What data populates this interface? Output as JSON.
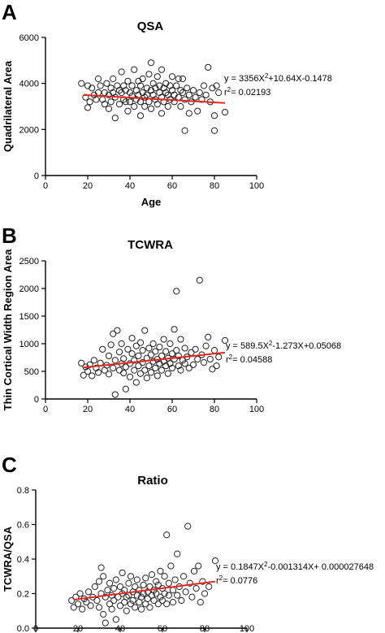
{
  "chart_data": [
    {
      "type": "scatter",
      "panel_label": "A",
      "title": "QSA",
      "xlabel": "Age",
      "ylabel": "Quadrilateral Area",
      "xlim": [
        0,
        100
      ],
      "ylim": [
        0,
        6000
      ],
      "x_ticks": [
        0,
        20,
        40,
        60,
        80,
        100
      ],
      "y_ticks": [
        0,
        2000,
        4000,
        6000
      ],
      "x_tick_labels": [
        "0",
        "20",
        "40",
        "60",
        "80",
        "100"
      ],
      "y_tick_labels": [
        "0",
        "2000",
        "4000",
        "6000"
      ],
      "grid": false,
      "annotation": {
        "equation_parts": [
          "y = 3356X",
          "2",
          "+10.64X-0.1478"
        ],
        "r2_parts": [
          "r",
          "2",
          "= 0.02193"
        ]
      },
      "fit_line": {
        "x": [
          18,
          85
        ],
        "y": [
          3500,
          3150
        ]
      },
      "points": [
        [
          17,
          4000
        ],
        [
          19,
          3400
        ],
        [
          20,
          3900
        ],
        [
          20,
          2950
        ],
        [
          21,
          3200
        ],
        [
          22,
          3800
        ],
        [
          23,
          3500
        ],
        [
          24,
          3300
        ],
        [
          25,
          4200
        ],
        [
          25,
          3600
        ],
        [
          26,
          3900
        ],
        [
          27,
          3300
        ],
        [
          28,
          3600
        ],
        [
          28,
          3100
        ],
        [
          29,
          4000
        ],
        [
          30,
          3500
        ],
        [
          30,
          2900
        ],
        [
          31,
          3800
        ],
        [
          31,
          3200
        ],
        [
          32,
          4200
        ],
        [
          32,
          3600
        ],
        [
          33,
          3400
        ],
        [
          33,
          2500
        ],
        [
          34,
          3900
        ],
        [
          35,
          3700
        ],
        [
          35,
          3100
        ],
        [
          36,
          4500
        ],
        [
          36,
          3600
        ],
        [
          37,
          3300
        ],
        [
          37,
          3900
        ],
        [
          38,
          3200
        ],
        [
          38,
          3700
        ],
        [
          39,
          4100
        ],
        [
          39,
          2800
        ],
        [
          40,
          3600
        ],
        [
          40,
          3200
        ],
        [
          41,
          3900
        ],
        [
          41,
          3450
        ],
        [
          42,
          4600
        ],
        [
          42,
          3000
        ],
        [
          43,
          3700
        ],
        [
          43,
          3300
        ],
        [
          44,
          4100
        ],
        [
          44,
          3500
        ],
        [
          45,
          3200
        ],
        [
          45,
          3900
        ],
        [
          45,
          2600
        ],
        [
          46,
          3600
        ],
        [
          46,
          4200
        ],
        [
          47,
          3400
        ],
        [
          47,
          3000
        ],
        [
          48,
          3800
        ],
        [
          48,
          3500
        ],
        [
          49,
          4400
        ],
        [
          49,
          3200
        ],
        [
          50,
          4900
        ],
        [
          50,
          3700
        ],
        [
          50,
          2900
        ],
        [
          51,
          3500
        ],
        [
          51,
          4000
        ],
        [
          52,
          3300
        ],
        [
          52,
          3800
        ],
        [
          53,
          4300
        ],
        [
          53,
          3100
        ],
        [
          54,
          3600
        ],
        [
          54,
          3900
        ],
        [
          55,
          3400
        ],
        [
          55,
          4600
        ],
        [
          55,
          2700
        ],
        [
          56,
          3800
        ],
        [
          56,
          3200
        ],
        [
          57,
          3600
        ],
        [
          57,
          4000
        ],
        [
          58,
          3500
        ],
        [
          58,
          3000
        ],
        [
          59,
          3900
        ],
        [
          59,
          3300
        ],
        [
          60,
          3700
        ],
        [
          60,
          4300
        ],
        [
          61,
          3200
        ],
        [
          61,
          3500
        ],
        [
          62,
          3900
        ],
        [
          63,
          4200
        ],
        [
          63,
          3400
        ],
        [
          64,
          3000
        ],
        [
          64,
          3700
        ],
        [
          65,
          3600
        ],
        [
          65,
          4200
        ],
        [
          66,
          3300
        ],
        [
          66,
          1950
        ],
        [
          67,
          3800
        ],
        [
          68,
          3500
        ],
        [
          68,
          2700
        ],
        [
          69,
          3200
        ],
        [
          70,
          3700
        ],
        [
          71,
          3400
        ],
        [
          72,
          2800
        ],
        [
          73,
          3600
        ],
        [
          74,
          3300
        ],
        [
          75,
          3900
        ],
        [
          76,
          3500
        ],
        [
          77,
          4700
        ],
        [
          78,
          3200
        ],
        [
          79,
          3800
        ],
        [
          80,
          2600
        ],
        [
          80,
          1950
        ],
        [
          81,
          3900
        ],
        [
          82,
          3600
        ],
        [
          85,
          2750
        ]
      ]
    },
    {
      "type": "scatter",
      "panel_label": "B",
      "title": "TCWRA",
      "xlabel": "",
      "ylabel": "Thin Cortical Width Region Area",
      "xlim": [
        0,
        100
      ],
      "ylim": [
        0,
        2500
      ],
      "x_ticks": [
        0,
        20,
        40,
        60,
        80,
        100
      ],
      "y_ticks": [
        0,
        500,
        1000,
        1500,
        2000,
        2500
      ],
      "x_tick_labels": [
        "0",
        "20",
        "40",
        "60",
        "80",
        "100"
      ],
      "y_tick_labels": [
        "0",
        "500",
        "1000",
        "1500",
        "2000",
        "2500"
      ],
      "grid": false,
      "annotation": {
        "equation_parts": [
          "y = 589.5X",
          "2",
          "-1.273X+0.05068"
        ],
        "r2_parts": [
          "r",
          "2",
          "= 0.04588"
        ]
      },
      "fit_line": {
        "x": [
          18,
          85
        ],
        "y": [
          570,
          840
        ]
      },
      "points": [
        [
          17,
          650
        ],
        [
          18,
          430
        ],
        [
          19,
          580
        ],
        [
          20,
          500
        ],
        [
          21,
          620
        ],
        [
          22,
          420
        ],
        [
          23,
          700
        ],
        [
          24,
          560
        ],
        [
          25,
          480
        ],
        [
          26,
          650
        ],
        [
          27,
          900
        ],
        [
          28,
          520
        ],
        [
          29,
          610
        ],
        [
          30,
          450
        ],
        [
          30,
          780
        ],
        [
          31,
          980
        ],
        [
          32,
          560
        ],
        [
          32,
          1180
        ],
        [
          33,
          700
        ],
        [
          33,
          80
        ],
        [
          34,
          1240
        ],
        [
          35,
          520
        ],
        [
          35,
          850
        ],
        [
          36,
          640
        ],
        [
          36,
          1000
        ],
        [
          37,
          470
        ],
        [
          37,
          730
        ],
        [
          38,
          580
        ],
        [
          38,
          180
        ],
        [
          39,
          900
        ],
        [
          40,
          640
        ],
        [
          40,
          400
        ],
        [
          41,
          820
        ],
        [
          41,
          1100
        ],
        [
          42,
          520
        ],
        [
          42,
          700
        ],
        [
          43,
          960
        ],
        [
          43,
          300
        ],
        [
          44,
          600
        ],
        [
          44,
          780
        ],
        [
          45,
          460
        ],
        [
          45,
          1020
        ],
        [
          46,
          660
        ],
        [
          46,
          880
        ],
        [
          47,
          520
        ],
        [
          47,
          1240
        ],
        [
          48,
          740
        ],
        [
          48,
          380
        ],
        [
          49,
          600
        ],
        [
          49,
          920
        ],
        [
          50,
          800
        ],
        [
          50,
          480
        ],
        [
          51,
          680
        ],
        [
          51,
          1000
        ],
        [
          52,
          560
        ],
        [
          52,
          860
        ],
        [
          53,
          720
        ],
        [
          53,
          420
        ],
        [
          54,
          940
        ],
        [
          54,
          640
        ],
        [
          55,
          780
        ],
        [
          55,
          520
        ],
        [
          56,
          1080
        ],
        [
          56,
          680
        ],
        [
          57,
          600
        ],
        [
          57,
          860
        ],
        [
          58,
          740
        ],
        [
          58,
          460
        ],
        [
          59,
          1000
        ],
        [
          59,
          640
        ],
        [
          60,
          820
        ],
        [
          60,
          560
        ],
        [
          61,
          1260
        ],
        [
          61,
          720
        ],
        [
          62,
          1950
        ],
        [
          62,
          880
        ],
        [
          63,
          600
        ],
        [
          63,
          780
        ],
        [
          64,
          1080
        ],
        [
          64,
          520
        ],
        [
          65,
          700
        ],
        [
          66,
          920
        ],
        [
          66,
          640
        ],
        [
          67,
          760
        ],
        [
          68,
          560
        ],
        [
          69,
          840
        ],
        [
          70,
          620
        ],
        [
          71,
          900
        ],
        [
          72,
          720
        ],
        [
          73,
          2150
        ],
        [
          74,
          800
        ],
        [
          75,
          660
        ],
        [
          76,
          960
        ],
        [
          77,
          1120
        ],
        [
          78,
          720
        ],
        [
          79,
          540
        ],
        [
          80,
          880
        ],
        [
          81,
          600
        ],
        [
          82,
          760
        ],
        [
          85,
          1060
        ]
      ]
    },
    {
      "type": "scatter",
      "panel_label": "C",
      "title": "Ratio",
      "xlabel": "",
      "ylabel": "TCWRA/QSA",
      "xlim": [
        0,
        100
      ],
      "ylim": [
        0,
        0.8
      ],
      "x_ticks": [
        0,
        20,
        40,
        60,
        80,
        100
      ],
      "y_ticks": [
        0,
        0.2,
        0.4,
        0.6,
        0.8
      ],
      "x_tick_labels": [
        "0",
        "20",
        "40",
        "60",
        "80",
        "100"
      ],
      "y_tick_labels": [
        "0.0",
        "0.2",
        "0.4",
        "0.6",
        "0.8"
      ],
      "grid": false,
      "annotation": {
        "equation_parts": [
          "y = 0.1847X",
          "2",
          "-0.001314X+ 0.000027648"
        ],
        "r2_parts": [
          "r",
          "2",
          "= 0.0776"
        ]
      },
      "fit_line": {
        "x": [
          18,
          85
        ],
        "y": [
          0.165,
          0.27
        ]
      },
      "points": [
        [
          17,
          0.16
        ],
        [
          18,
          0.12
        ],
        [
          19,
          0.18
        ],
        [
          20,
          0.14
        ],
        [
          21,
          0.2
        ],
        [
          22,
          0.11
        ],
        [
          23,
          0.17
        ],
        [
          24,
          0.15
        ],
        [
          25,
          0.21
        ],
        [
          26,
          0.13
        ],
        [
          27,
          0.18
        ],
        [
          28,
          0.24
        ],
        [
          29,
          0.16
        ],
        [
          30,
          0.27
        ],
        [
          30,
          0.12
        ],
        [
          31,
          0.35
        ],
        [
          31,
          0.2
        ],
        [
          32,
          0.3
        ],
        [
          32,
          0.08
        ],
        [
          33,
          0.18
        ],
        [
          33,
          0.03
        ],
        [
          34,
          0.22
        ],
        [
          35,
          0.14
        ],
        [
          35,
          0.26
        ],
        [
          36,
          0.19
        ],
        [
          36,
          0.11
        ],
        [
          37,
          0.23
        ],
        [
          37,
          0.16
        ],
        [
          38,
          0.28
        ],
        [
          38,
          0.05
        ],
        [
          39,
          0.18
        ],
        [
          40,
          0.13
        ],
        [
          40,
          0.24
        ],
        [
          41,
          0.2
        ],
        [
          41,
          0.32
        ],
        [
          42,
          0.15
        ],
        [
          42,
          0.22
        ],
        [
          43,
          0.18
        ],
        [
          43,
          0.1
        ],
        [
          44,
          0.26
        ],
        [
          44,
          0.19
        ],
        [
          45,
          0.14
        ],
        [
          45,
          0.3
        ],
        [
          46,
          0.21
        ],
        [
          46,
          0.16
        ],
        [
          47,
          0.24
        ],
        [
          47,
          0.12
        ],
        [
          48,
          0.19
        ],
        [
          48,
          0.28
        ],
        [
          49,
          0.15
        ],
        [
          49,
          0.22
        ],
        [
          50,
          0.18
        ],
        [
          50,
          0.11
        ],
        [
          51,
          0.25
        ],
        [
          51,
          0.2
        ],
        [
          52,
          0.14
        ],
        [
          52,
          0.29
        ],
        [
          53,
          0.21
        ],
        [
          53,
          0.17
        ],
        [
          54,
          0.24
        ],
        [
          54,
          0.12
        ],
        [
          55,
          0.19
        ],
        [
          55,
          0.31
        ],
        [
          56,
          0.22
        ],
        [
          56,
          0.16
        ],
        [
          57,
          0.27
        ],
        [
          57,
          0.2
        ],
        [
          58,
          0.14
        ],
        [
          58,
          0.25
        ],
        [
          59,
          0.18
        ],
        [
          59,
          0.33
        ],
        [
          60,
          0.23
        ],
        [
          60,
          0.16
        ],
        [
          61,
          0.3
        ],
        [
          61,
          0.2
        ],
        [
          62,
          0.54
        ],
        [
          62,
          0.14
        ],
        [
          63,
          0.26
        ],
        [
          63,
          0.19
        ],
        [
          64,
          0.36
        ],
        [
          65,
          0.22
        ],
        [
          65,
          0.15
        ],
        [
          66,
          0.28
        ],
        [
          67,
          0.43
        ],
        [
          67,
          0.19
        ],
        [
          68,
          0.24
        ],
        [
          69,
          0.16
        ],
        [
          70,
          0.3
        ],
        [
          71,
          0.21
        ],
        [
          72,
          0.59
        ],
        [
          73,
          0.26
        ],
        [
          74,
          0.18
        ],
        [
          75,
          0.33
        ],
        [
          76,
          0.23
        ],
        [
          77,
          0.36
        ],
        [
          78,
          0.15
        ],
        [
          79,
          0.27
        ],
        [
          80,
          0.2
        ],
        [
          82,
          0.24
        ],
        [
          85,
          0.39
        ]
      ]
    }
  ]
}
